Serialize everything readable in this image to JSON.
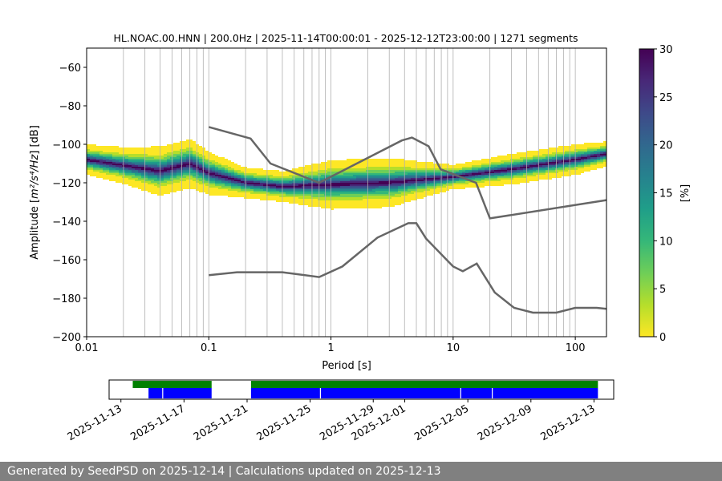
{
  "chart_data": {
    "type": "heatmap",
    "title": "HL.NOAC.00.HNN | 200.0Hz | 2025-11-14T00:00:01 - 2025-12-12T23:00:00 | 1271 segments",
    "xlabel": "Period [s]",
    "ylabel_prefix": "Amplitude [",
    "ylabel_math": "m²/s⁴/Hz",
    "ylabel_suffix": "] [dB]",
    "x_scale": "log",
    "xlim": [
      0.01,
      180
    ],
    "ylim": [
      -200,
      -50
    ],
    "x_ticks": [
      {
        "v": 0.01,
        "label": "0.01"
      },
      {
        "v": 0.1,
        "label": "0.1"
      },
      {
        "v": 1,
        "label": "1"
      },
      {
        "v": 10,
        "label": "10"
      },
      {
        "v": 100,
        "label": "100"
      }
    ],
    "y_ticks": [
      {
        "v": -60,
        "label": "−60"
      },
      {
        "v": -80,
        "label": "−80"
      },
      {
        "v": -100,
        "label": "−100"
      },
      {
        "v": -120,
        "label": "−120"
      },
      {
        "v": -140,
        "label": "−140"
      },
      {
        "v": -160,
        "label": "−160"
      },
      {
        "v": -180,
        "label": "−180"
      },
      {
        "v": -200,
        "label": "−200"
      }
    ],
    "grid": "vertical",
    "colorbar": {
      "label": "[%]",
      "range": [
        0,
        30
      ],
      "ticks": [
        {
          "v": 0,
          "label": "0"
        },
        {
          "v": 5,
          "label": "5"
        },
        {
          "v": 10,
          "label": "10"
        },
        {
          "v": 15,
          "label": "15"
        },
        {
          "v": 20,
          "label": "20"
        },
        {
          "v": 25,
          "label": "25"
        },
        {
          "v": 30,
          "label": "30"
        }
      ],
      "colors": [
        "#fde725",
        "#b5de2b",
        "#6ece58",
        "#35b779",
        "#1f9e89",
        "#26828e",
        "#31688e",
        "#3e4989",
        "#482878",
        "#440154"
      ]
    },
    "density_band": [
      {
        "x": 0.01,
        "y": -108,
        "spread": 5
      },
      {
        "x": 0.02,
        "y": -111,
        "spread": 6
      },
      {
        "x": 0.04,
        "y": -114,
        "spread": 8
      },
      {
        "x": 0.07,
        "y": -110,
        "spread": 8
      },
      {
        "x": 0.1,
        "y": -115,
        "spread": 7
      },
      {
        "x": 0.2,
        "y": -120,
        "spread": 5
      },
      {
        "x": 0.4,
        "y": -122,
        "spread": 5
      },
      {
        "x": 1,
        "y": -121,
        "spread": 8
      },
      {
        "x": 3,
        "y": -120,
        "spread": 8
      },
      {
        "x": 10,
        "y": -117,
        "spread": 4
      },
      {
        "x": 30,
        "y": -113,
        "spread": 5
      },
      {
        "x": 100,
        "y": -108,
        "spread": 5
      },
      {
        "x": 180,
        "y": -105,
        "spread": 4
      }
    ],
    "noise_models": [
      {
        "name": "",
        "points": [
          [
            0.1,
            -91
          ],
          [
            0.22,
            -97
          ],
          [
            0.32,
            -110
          ],
          [
            0.8,
            -120
          ],
          [
            3.8,
            -98
          ],
          [
            4.6,
            -96.5
          ],
          [
            6.3,
            -101
          ],
          [
            7.9,
            -113
          ],
          [
            15.4,
            -120
          ],
          [
            20,
            -138.5
          ],
          [
            180,
            -129
          ]
        ]
      },
      {
        "name": "",
        "points": [
          [
            0.1,
            -168
          ],
          [
            0.17,
            -166.5
          ],
          [
            0.4,
            -166.5
          ],
          [
            0.8,
            -169
          ],
          [
            1.24,
            -163.5
          ],
          [
            2.4,
            -148.5
          ],
          [
            4.3,
            -141
          ],
          [
            5,
            -141
          ],
          [
            6,
            -149
          ],
          [
            10,
            -163.5
          ],
          [
            12,
            -166
          ],
          [
            15.6,
            -162
          ],
          [
            21.9,
            -177
          ],
          [
            31.6,
            -185
          ],
          [
            45,
            -187.5
          ],
          [
            70,
            -187.5
          ],
          [
            100,
            -185
          ],
          [
            150,
            -185
          ],
          [
            180,
            -185.5
          ]
        ]
      }
    ]
  },
  "timeline": {
    "tick_labels": [
      "2025-11-13",
      "2025-11-17",
      "2025-11-21",
      "2025-11-25",
      "2025-11-29",
      "2025-12-01",
      "2025-12-05",
      "2025-12-09",
      "2025-12-13"
    ],
    "range_days": [
      0,
      29
    ],
    "tick_days": [
      0.75,
      4.75,
      8.75,
      12.75,
      16.75,
      18.75,
      22.75,
      26.75,
      30.75
    ],
    "green_segments": [
      [
        1.5,
        6.5
      ],
      [
        9.0,
        31.0
      ]
    ],
    "blue_segments": [
      [
        2.5,
        6.5
      ],
      [
        9.0,
        31.0
      ]
    ],
    "gaps_days": [
      3.4,
      13.4,
      22.3,
      24.3
    ],
    "colors": {
      "green": "#008000",
      "blue": "#0000ff"
    }
  },
  "footer": {
    "text": "Generated by SeedPSD on 2025-12-14 | Calculations updated on 2025-12-13"
  }
}
